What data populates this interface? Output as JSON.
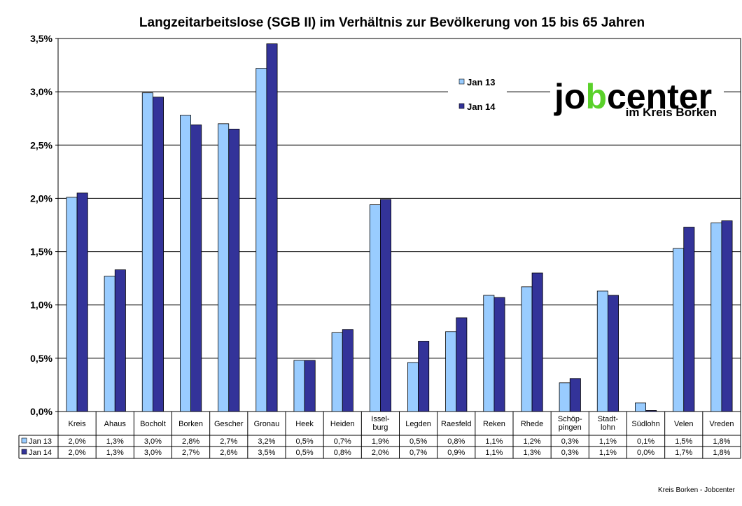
{
  "chart_data": {
    "type": "bar",
    "title": "Langzeitarbeitslose (SGB II) im Verhältnis zur Bevölkerung von 15 bis 65 Jahren",
    "categories": [
      "Kreis",
      "Ahaus",
      "Bocholt",
      "Borken",
      "Gescher",
      "Gronau",
      "Heek",
      "Heiden",
      "Issel-\nburg",
      "Legden",
      "Raesfeld",
      "Reken",
      "Rhede",
      "Schöp-\npingen",
      "Stadt-\nlohn",
      "Südlohn",
      "Velen",
      "Vreden"
    ],
    "series": [
      {
        "name": "Jan 13",
        "color": "#99ccff",
        "values": [
          2.01,
          1.27,
          2.99,
          2.78,
          2.7,
          3.22,
          0.48,
          0.74,
          1.94,
          0.46,
          0.75,
          1.09,
          1.17,
          0.27,
          1.13,
          0.08,
          1.53,
          1.77
        ],
        "labels": [
          "2,0%",
          "1,3%",
          "3,0%",
          "2,8%",
          "2,7%",
          "3,2%",
          "0,5%",
          "0,7%",
          "1,9%",
          "0,5%",
          "0,8%",
          "1,1%",
          "1,2%",
          "0,3%",
          "1,1%",
          "0,1%",
          "1,5%",
          "1,8%"
        ]
      },
      {
        "name": "Jan 14",
        "color": "#333399",
        "values": [
          2.05,
          1.33,
          2.95,
          2.69,
          2.65,
          3.45,
          0.48,
          0.77,
          1.99,
          0.66,
          0.88,
          1.07,
          1.3,
          0.31,
          1.09,
          0.01,
          1.73,
          1.79
        ],
        "labels": [
          "2,0%",
          "1,3%",
          "3,0%",
          "2,7%",
          "2,6%",
          "3,5%",
          "0,5%",
          "0,8%",
          "2,0%",
          "0,7%",
          "0,9%",
          "1,1%",
          "1,3%",
          "0,3%",
          "1,1%",
          "0,0%",
          "1,7%",
          "1,8%"
        ]
      }
    ],
    "ylim": [
      0,
      3.5
    ],
    "yticks": [
      "0,0%",
      "0,5%",
      "1,0%",
      "1,5%",
      "2,0%",
      "2,5%",
      "3,0%",
      "3,5%"
    ],
    "grid": true,
    "legend_position": "top-right",
    "data_table": true
  },
  "logo": {
    "part1": "jo",
    "part2": "b",
    "part3": "center",
    "subtitle": "im Kreis Borken"
  },
  "credit": "Kreis Borken - Jobcenter"
}
